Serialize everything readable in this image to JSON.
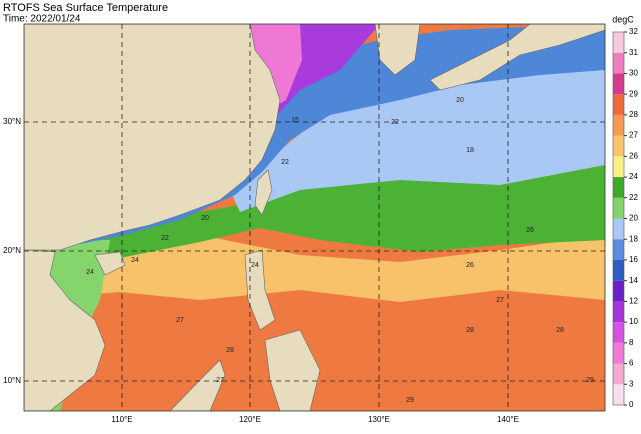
{
  "header": {
    "title": "RTOFS Sea Surface Temperature",
    "time": "Time: 2022/01/24"
  },
  "map": {
    "lon_labels": [
      "110°E",
      "120°E",
      "130°E",
      "140°E"
    ],
    "lat_labels": [
      "30°N",
      "20°N",
      "10°N"
    ],
    "contour_labels": [
      "15",
      "20",
      "22",
      "22",
      "24",
      "24",
      "27",
      "27",
      "28",
      "28",
      "29",
      "29",
      "26",
      "26",
      "22",
      "18",
      "20",
      "24",
      "27",
      "28"
    ]
  },
  "colorbar": {
    "label": "degC",
    "ticks": [
      0,
      3,
      6,
      8,
      10,
      12,
      14,
      16,
      18,
      20,
      22,
      24,
      26,
      27,
      28,
      29,
      30,
      31,
      32
    ],
    "colors": [
      "#f6dff0",
      "#f5a9cf",
      "#f07ad8",
      "#d653e2",
      "#a635dc",
      "#6b22c4",
      "#2f5cc0",
      "#5a8ce0",
      "#aac8f5",
      "#84d36a",
      "#3eaa2c",
      "#f6f086",
      "#f8c46a",
      "#f59a52",
      "#ee6a3c",
      "#d23c8c",
      "#f07fbf",
      "#f8c8e0"
    ]
  }
}
